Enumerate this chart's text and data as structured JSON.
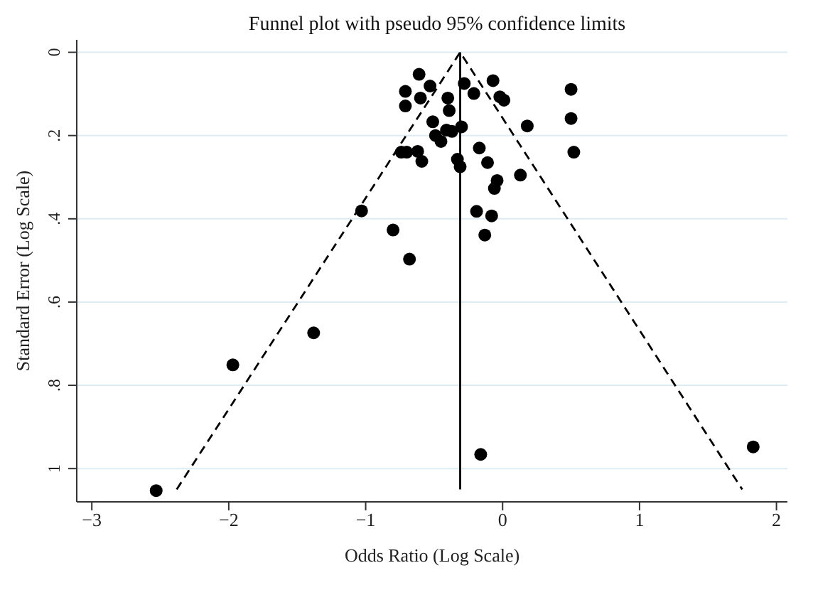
{
  "chart_data": {
    "type": "scatter",
    "title": "Funnel plot with pseudo 95% confidence limits",
    "xlabel": "Odds Ratio (Log Scale)",
    "ylabel": "Standard Error (Log Scale)",
    "xlim": [
      -3.11,
      2.08
    ],
    "ylim": [
      1.08,
      -0.03
    ],
    "xticks": [
      {
        "value": -3,
        "label": "−3"
      },
      {
        "value": -2,
        "label": "−2"
      },
      {
        "value": -1,
        "label": "−1"
      },
      0,
      1,
      2
    ],
    "yticks": [
      0,
      {
        "value": 0.2,
        "label": ".2"
      },
      {
        "value": 0.4,
        "label": ".4"
      },
      {
        "value": 0.6,
        "label": ".6"
      },
      {
        "value": 0.8,
        "label": ".8"
      },
      1
    ],
    "grid": "y",
    "marker": "circle",
    "series": [
      {
        "color": "#000000",
        "x": [
          -0.61,
          -0.53,
          -0.71,
          -0.71,
          -0.6,
          -0.4,
          -0.39,
          -0.28,
          -0.21,
          -0.07,
          -0.02,
          0.01,
          0.5,
          0.5,
          0.52,
          0.18,
          -0.51,
          -0.49,
          -0.45,
          -0.41,
          -0.37,
          -0.3,
          -0.74,
          -0.7,
          -0.62,
          -0.59,
          -0.33,
          -0.31,
          -0.17,
          -0.11,
          -0.04,
          -0.06,
          0.13,
          -1.03,
          -0.8,
          -0.68,
          -0.19,
          -0.08,
          -0.13,
          -1.38,
          -1.97,
          -2.53,
          -0.16,
          1.83
        ],
        "values": [
          0.053,
          0.081,
          0.094,
          0.129,
          0.11,
          0.11,
          0.14,
          0.075,
          0.099,
          0.068,
          0.107,
          0.115,
          0.089,
          0.159,
          0.24,
          0.177,
          0.167,
          0.2,
          0.214,
          0.187,
          0.19,
          0.179,
          0.24,
          0.24,
          0.238,
          0.262,
          0.257,
          0.275,
          0.23,
          0.265,
          0.308,
          0.327,
          0.295,
          0.381,
          0.427,
          0.497,
          0.382,
          0.393,
          0.439,
          0.674,
          0.751,
          1.053,
          0.966,
          0.948
        ]
      },
      {
        "type": "line",
        "color": "#000000",
        "line_style": "dashed",
        "marker": "none",
        "x": [
          -2.38,
          -0.31,
          1.75
        ],
        "values": [
          1.05,
          0,
          1.05
        ]
      },
      {
        "type": "line",
        "color": "#000000",
        "line_style": "solid",
        "marker": "none",
        "x": [
          -0.31,
          -0.31
        ],
        "values": [
          0,
          1.05
        ]
      }
    ]
  }
}
